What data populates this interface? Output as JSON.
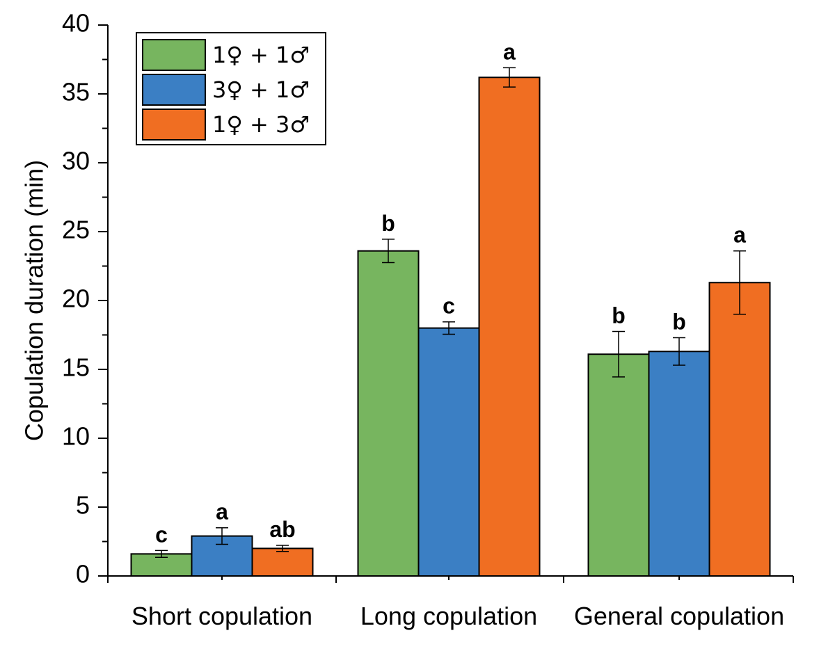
{
  "chart_data": {
    "type": "bar",
    "title": "",
    "xlabel": "",
    "ylabel": "Copulation duration (min)",
    "ylim": [
      0,
      40
    ],
    "yticks": [
      0,
      5,
      10,
      15,
      20,
      25,
      30,
      35,
      40
    ],
    "categories": [
      "Short copulation",
      "Long copulation",
      "General copulation"
    ],
    "legend_position": "top-left",
    "grid": false,
    "series": [
      {
        "name": "1♀ + 1♂",
        "color": "#77b55f",
        "values": [
          1.6,
          23.6,
          16.1
        ],
        "errors": [
          0.25,
          0.85,
          1.65
        ],
        "labels": [
          "c",
          "b",
          "b"
        ]
      },
      {
        "name": "3♀ + 1♂",
        "color": "#3b7fc4",
        "values": [
          2.9,
          18.0,
          16.3
        ],
        "errors": [
          0.6,
          0.45,
          1.0
        ],
        "labels": [
          "a",
          "c",
          "b"
        ]
      },
      {
        "name": "1♀ + 3♂",
        "color": "#f06e22",
        "values": [
          2.0,
          36.2,
          21.3
        ],
        "errors": [
          0.22,
          0.7,
          2.3
        ],
        "labels": [
          "ab",
          "a",
          "a"
        ]
      }
    ]
  }
}
